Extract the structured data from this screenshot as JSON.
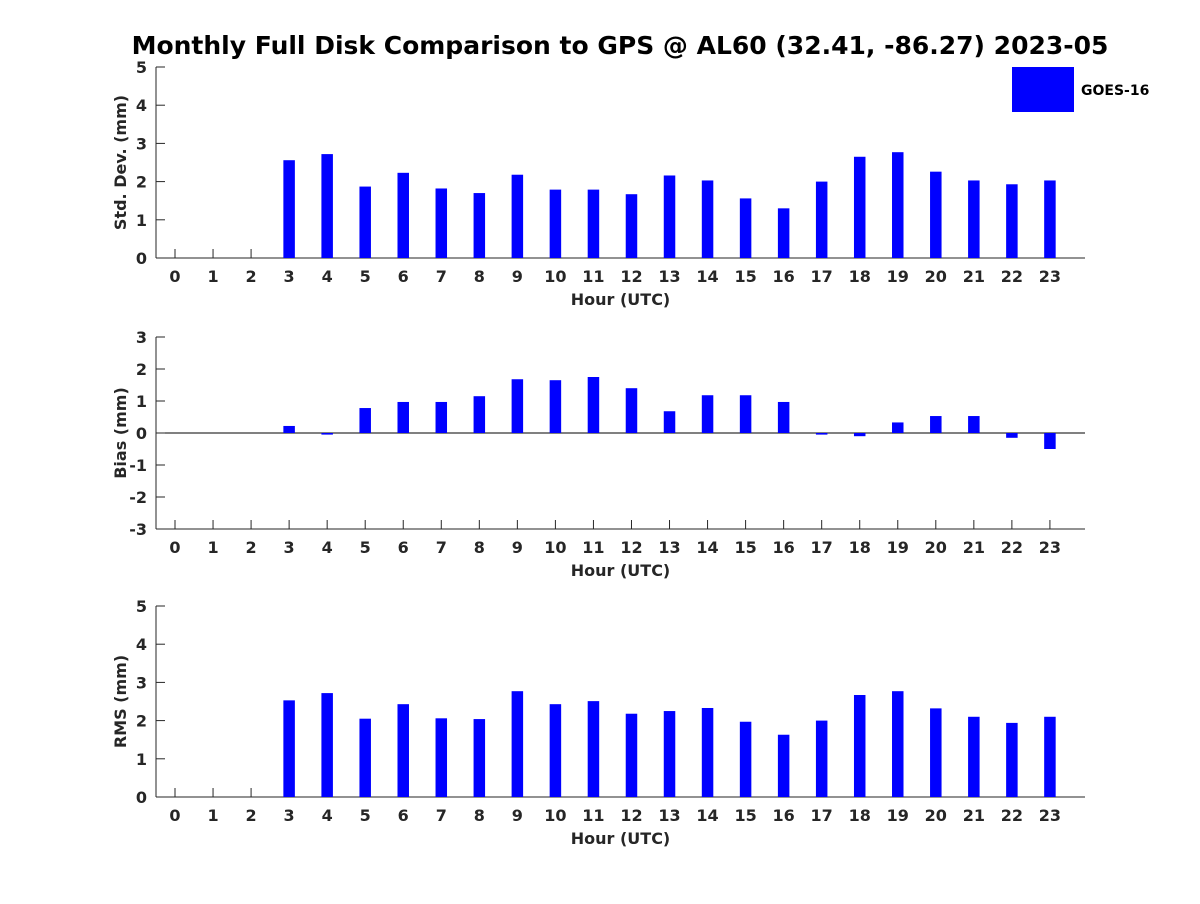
{
  "title": "Monthly Full Disk Comparison to GPS @ AL60 (32.41, -86.27) 2023-05",
  "legend": {
    "label": "GOES-16",
    "color": "#0000ff",
    "placement": "top-right"
  },
  "colors": {
    "bar": "#0000ff",
    "axis": "#262626",
    "text": "#262626",
    "zero_line": "#000000"
  },
  "chart_data": [
    {
      "type": "bar",
      "series": [
        {
          "name": "GOES-16",
          "values": [
            null,
            null,
            null,
            2.56,
            2.72,
            1.87,
            2.23,
            1.82,
            1.7,
            2.18,
            1.79,
            1.79,
            1.67,
            2.16,
            2.03,
            1.56,
            1.3,
            2.0,
            2.65,
            2.77,
            2.26,
            2.03,
            1.93,
            2.03
          ]
        }
      ],
      "categories": [
        "0",
        "1",
        "2",
        "3",
        "4",
        "5",
        "6",
        "7",
        "8",
        "9",
        "10",
        "11",
        "12",
        "13",
        "14",
        "15",
        "16",
        "17",
        "18",
        "19",
        "20",
        "21",
        "22",
        "23"
      ],
      "xlabel": "Hour (UTC)",
      "ylabel": "Std. Dev. (mm)",
      "ylim": [
        0,
        5
      ],
      "yticks": [
        "0",
        "1",
        "2",
        "3",
        "4",
        "5"
      ],
      "grid": false
    },
    {
      "type": "bar",
      "series": [
        {
          "name": "GOES-16",
          "values": [
            null,
            null,
            null,
            0.22,
            -0.05,
            0.78,
            0.97,
            0.97,
            1.15,
            1.68,
            1.65,
            1.75,
            1.4,
            0.68,
            1.18,
            1.18,
            0.97,
            -0.05,
            -0.1,
            0.33,
            0.53,
            0.53,
            -0.15,
            -0.5
          ]
        }
      ],
      "categories": [
        "0",
        "1",
        "2",
        "3",
        "4",
        "5",
        "6",
        "7",
        "8",
        "9",
        "10",
        "11",
        "12",
        "13",
        "14",
        "15",
        "16",
        "17",
        "18",
        "19",
        "20",
        "21",
        "22",
        "23"
      ],
      "xlabel": "Hour (UTC)",
      "ylabel": "Bias (mm)",
      "ylim": [
        -3,
        3
      ],
      "yticks": [
        "-3",
        "-2",
        "-1",
        "0",
        "1",
        "2",
        "3"
      ],
      "grid": false
    },
    {
      "type": "bar",
      "series": [
        {
          "name": "GOES-16",
          "values": [
            null,
            null,
            null,
            2.53,
            2.72,
            2.05,
            2.43,
            2.06,
            2.04,
            2.77,
            2.43,
            2.51,
            2.18,
            2.25,
            2.33,
            1.97,
            1.63,
            2.0,
            2.67,
            2.77,
            2.32,
            2.1,
            1.94,
            2.1
          ]
        }
      ],
      "categories": [
        "0",
        "1",
        "2",
        "3",
        "4",
        "5",
        "6",
        "7",
        "8",
        "9",
        "10",
        "11",
        "12",
        "13",
        "14",
        "15",
        "16",
        "17",
        "18",
        "19",
        "20",
        "21",
        "22",
        "23"
      ],
      "xlabel": "Hour (UTC)",
      "ylabel": "RMS (mm)",
      "ylim": [
        0,
        5
      ],
      "yticks": [
        "0",
        "1",
        "2",
        "3",
        "4",
        "5"
      ],
      "grid": false
    }
  ]
}
